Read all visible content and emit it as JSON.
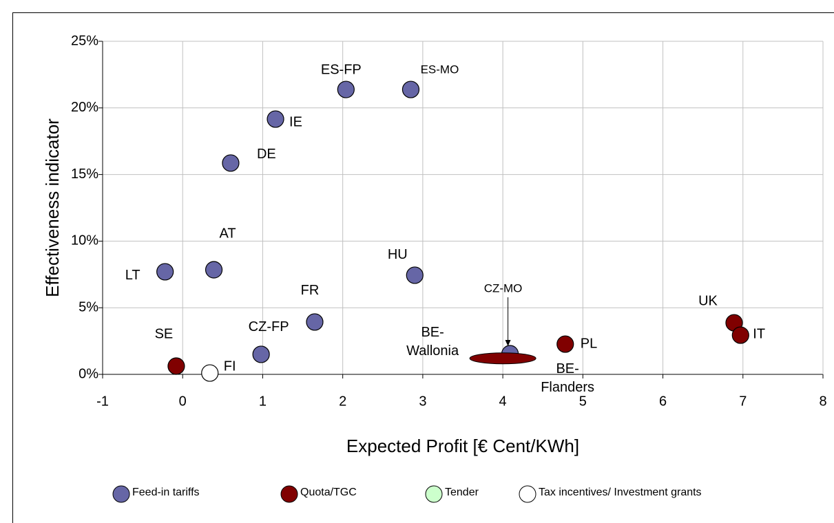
{
  "chart_data": {
    "type": "scatter",
    "x_label": "Expected Profit [€ Cent/KWh]",
    "y_label": "Effectiveness indicator",
    "xlim": [
      -1,
      8
    ],
    "xticks": [
      -1,
      0,
      1,
      2,
      3,
      4,
      5,
      6,
      7,
      8
    ],
    "ylim": [
      0,
      25
    ],
    "yticks": [
      {
        "value": 0,
        "label": "0%"
      },
      {
        "value": 5,
        "label": "5%"
      },
      {
        "value": 10,
        "label": "10%"
      },
      {
        "value": 15,
        "label": "15%"
      },
      {
        "value": 20,
        "label": "20%"
      },
      {
        "value": 25,
        "label": "25%"
      }
    ],
    "grid": true,
    "series": [
      {
        "name": "Feed-in tariffs",
        "color": "#6666a6",
        "labels": [
          "LT",
          "AT",
          "DE",
          "IE",
          "ES-FP",
          "ES-MO",
          "HU",
          "FR",
          "CZ-FP",
          "CZ-MO"
        ],
        "x": [
          -0.22,
          0.39,
          0.6,
          1.16,
          2.04,
          2.85,
          2.9,
          1.65,
          0.98,
          4.09
        ],
        "values": [
          7.7,
          7.85,
          15.86,
          19.16,
          21.38,
          21.38,
          7.44,
          3.93,
          1.5,
          1.55
        ]
      },
      {
        "name": "Quota/TGC",
        "color": "#800000",
        "labels": [
          "SE",
          "PL",
          "UK",
          "IT",
          "BE-Wallonia",
          "BE-Flanders"
        ],
        "x": [
          -0.08,
          4.78,
          6.89,
          6.97,
          4.0,
          4.0
        ],
        "values": [
          0.62,
          2.27,
          3.87,
          2.94,
          1.2,
          1.2
        ]
      },
      {
        "name": "Tender",
        "color": "#ccffcc",
        "labels": [],
        "x": [],
        "values": []
      },
      {
        "name": "Tax incentives/ Investment grants",
        "color": "#ffffff",
        "labels": [
          "FI"
        ],
        "x": [
          0.34
        ],
        "values": [
          0.1
        ]
      }
    ]
  }
}
